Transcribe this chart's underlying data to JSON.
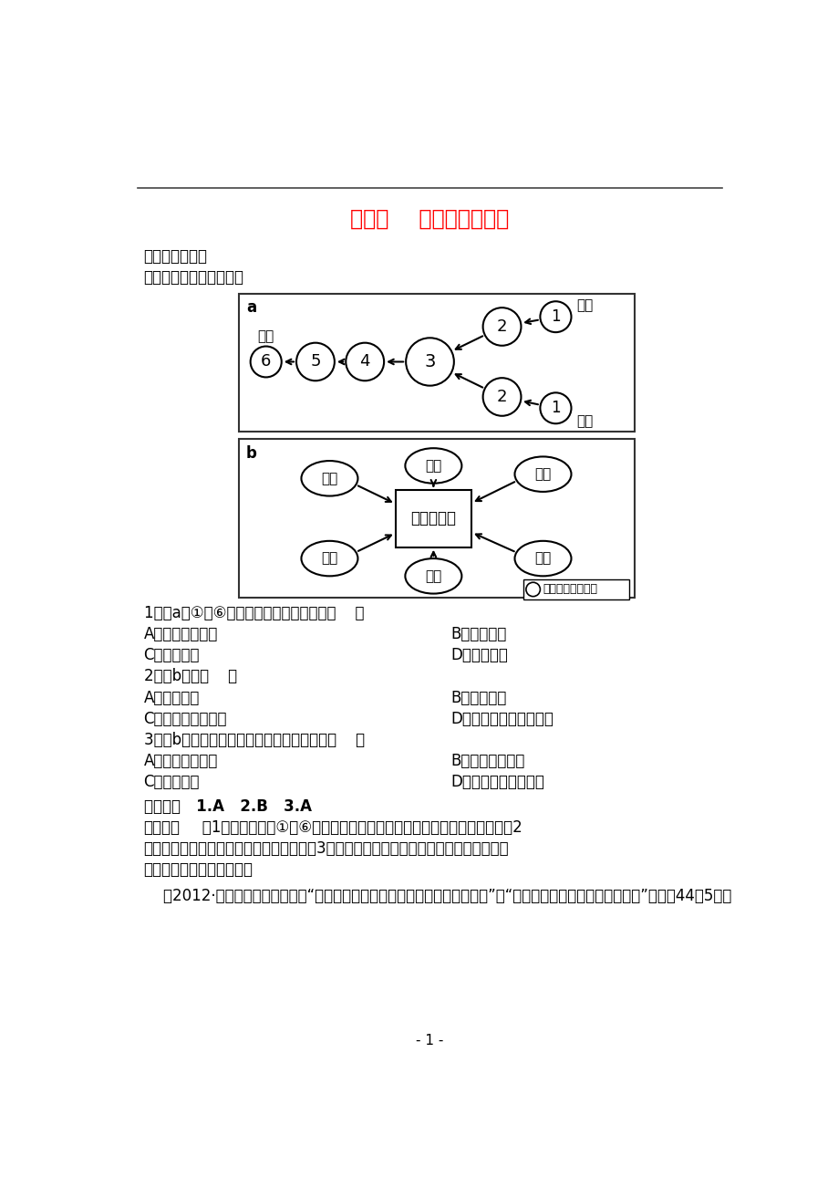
{
  "title": "第二节    工业地域的形成",
  "title_color": "#FF0000",
  "bg_color": "#FFFFFF",
  "section1": "一、单项选择题",
  "section1_sub": "读下图，完成１～３题。",
  "q1": "1．图a中①～⑥不同工厂之间的联系属于（    ）",
  "q1a": "A．工序上的联系",
  "q1b": "B．地域联系",
  "q1c": "C．信息联系",
  "q1d": "D．技术联系",
  "q2": "2．图b表示（    ）",
  "q2a": "A．工业集聚",
  "q2b": "B．工业分散",
  "q2c": "C．工业的信息联系",
  "q2d": "D．工业的空间利用联系",
  "q3": "3．图b所示工厂元件生产的全球化，目的是（    ）",
  "q3a": "A．寻找最优区位",
  "q3b": "B．提高产品质量",
  "q3c": "C．减轻污染",
  "q3d": "D．促进全球经济发展",
  "answer_header": "【答案】   1.A   2.B   3.A",
  "analysis_header": "【解析】",
  "analysis_line1": "   第1题，由图可知①～⑥环节，前面环节是后面环节的原料（零部件）。第2",
  "analysis_line2": "题，不同的元件生产分散在不同的国家。第3题，工业分散是从全球寻求最佳区位或是靠近",
  "analysis_line3": "市场、劳动力丰富的地区。",
  "para2": "    （2012·海南三亚高一检测）读“广东惠州某音响的零件生产厂家地域分布图”和“惠州某音响厂零件的来源比例图”，完成44～5题。"
}
